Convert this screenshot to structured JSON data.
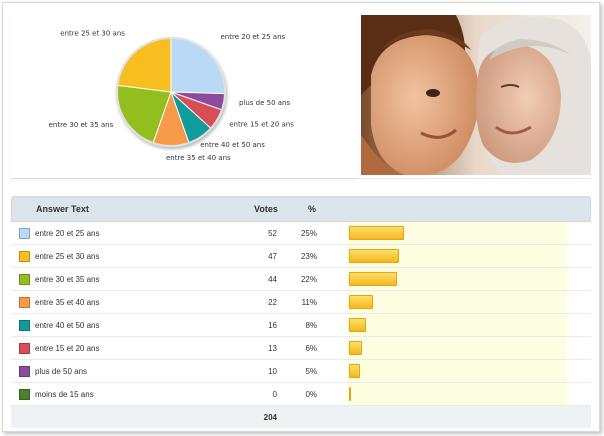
{
  "chart_data": [
    {
      "type": "pie",
      "labels": [
        "entre 20 et 25 ans",
        "plus de 50 ans",
        "entre 15 et 20 ans",
        "entre 40 et 50 ans",
        "entre 35 et 40 ans",
        "entre 30 et 35 ans",
        "entre 25 et 30 ans"
      ],
      "values": [
        52,
        10,
        13,
        16,
        22,
        44,
        47
      ],
      "colors": [
        "#b8daf6",
        "#8b4c9e",
        "#d84e58",
        "#119b9b",
        "#f79a4a",
        "#93bf1e",
        "#f8bd1e"
      ]
    },
    {
      "type": "table",
      "columns": {
        "answer": "Answer Text",
        "votes": "Votes",
        "pct": "%"
      },
      "rows": [
        {
          "label": "entre 20 et 25 ans",
          "votes": "52",
          "pct": "25%",
          "value": 25,
          "color": "#b8daf6"
        },
        {
          "label": "entre 25 et 30 ans",
          "votes": "47",
          "pct": "23%",
          "value": 23,
          "color": "#f8bd1e"
        },
        {
          "label": "entre 30 et 35 ans",
          "votes": "44",
          "pct": "22%",
          "value": 22,
          "color": "#93bf1e"
        },
        {
          "label": "entre 35 et 40 ans",
          "votes": "22",
          "pct": "11%",
          "value": 11,
          "color": "#f79a4a"
        },
        {
          "label": "entre 40 et 50 ans",
          "votes": "16",
          "pct": "8%",
          "value": 8,
          "color": "#119b9b"
        },
        {
          "label": "entre 15 et 20 ans",
          "votes": "13",
          "pct": "6%",
          "value": 6,
          "color": "#d84e58"
        },
        {
          "label": "plus de 50 ans",
          "votes": "10",
          "pct": "5%",
          "value": 5,
          "color": "#8b4c9e"
        },
        {
          "label": "moins de 15 ans",
          "votes": "0",
          "pct": "0%",
          "value": 0,
          "color": "#4e7f2a"
        }
      ],
      "total": "204"
    }
  ]
}
